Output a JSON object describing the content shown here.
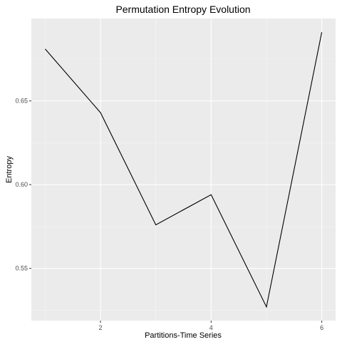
{
  "chart_data": {
    "type": "line",
    "title": "Permutation Entropy Evolution",
    "xlabel": "Partitions-Time Series",
    "ylabel": "Entropy",
    "x": [
      1,
      2,
      3,
      4,
      5,
      6
    ],
    "series": [
      {
        "values": [
          0.681,
          0.643,
          0.576,
          0.594,
          0.527,
          0.691
        ]
      }
    ],
    "xlim": [
      0.75,
      6.25
    ],
    "ylim": [
      0.5188,
      0.6992
    ],
    "x_ticks": [
      2,
      4,
      6
    ],
    "x_tick_labels": [
      "2",
      "4",
      "6"
    ],
    "y_ticks": [
      0.55,
      0.6,
      0.65
    ],
    "y_tick_labels": [
      "0.55",
      "0.60",
      "0.65"
    ],
    "grid": true,
    "legend": "none",
    "colors": {
      "panel_background": "#ebebeb",
      "grid_major": "#ffffff",
      "grid_minor": "#f5f5f5",
      "line": "#000000",
      "tick": "#333333"
    }
  }
}
